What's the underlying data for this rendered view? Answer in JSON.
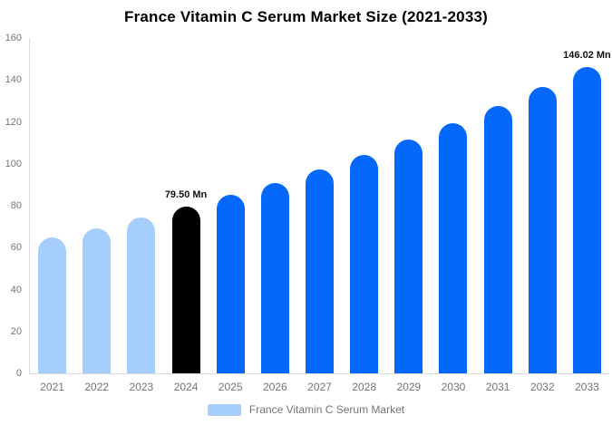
{
  "title": "France Vitamin C Serum Market Size (2021-2033)",
  "legend": {
    "label": "France Vitamin C Serum Market",
    "swatch_color": "#a6cefc"
  },
  "colors": {
    "historical_bar": "#a6cefc",
    "base_year_bar": "#000000",
    "forecast_bar": "#0568fd",
    "axis_text": "#757575",
    "axis_line": "#dddddd",
    "annotation_text": "#111111"
  },
  "chart_data": {
    "type": "bar",
    "title": "France Vitamin C Serum Market Size (2021-2033)",
    "unit": "Mn",
    "categories": [
      "2021",
      "2022",
      "2023",
      "2024",
      "2025",
      "2026",
      "2027",
      "2028",
      "2029",
      "2030",
      "2031",
      "2032",
      "2033"
    ],
    "values": [
      64.9,
      69.4,
      74.3,
      79.5,
      85.1,
      91.0,
      97.4,
      104.2,
      111.5,
      119.3,
      127.6,
      136.6,
      146.02
    ],
    "bar_roles": [
      "historical",
      "historical",
      "historical",
      "base_year",
      "forecast",
      "forecast",
      "forecast",
      "forecast",
      "forecast",
      "forecast",
      "forecast",
      "forecast",
      "forecast"
    ],
    "data_labels": [
      null,
      null,
      null,
      "79.50 Mn",
      null,
      null,
      null,
      null,
      null,
      null,
      null,
      null,
      "146.02 Mn"
    ],
    "ylim": [
      0,
      160
    ],
    "yticks": [
      0,
      20,
      40,
      60,
      80,
      100,
      120,
      140,
      160
    ],
    "grid": false,
    "legend_position": "bottom",
    "legend_entries": [
      "France Vitamin C Serum Market"
    ]
  }
}
